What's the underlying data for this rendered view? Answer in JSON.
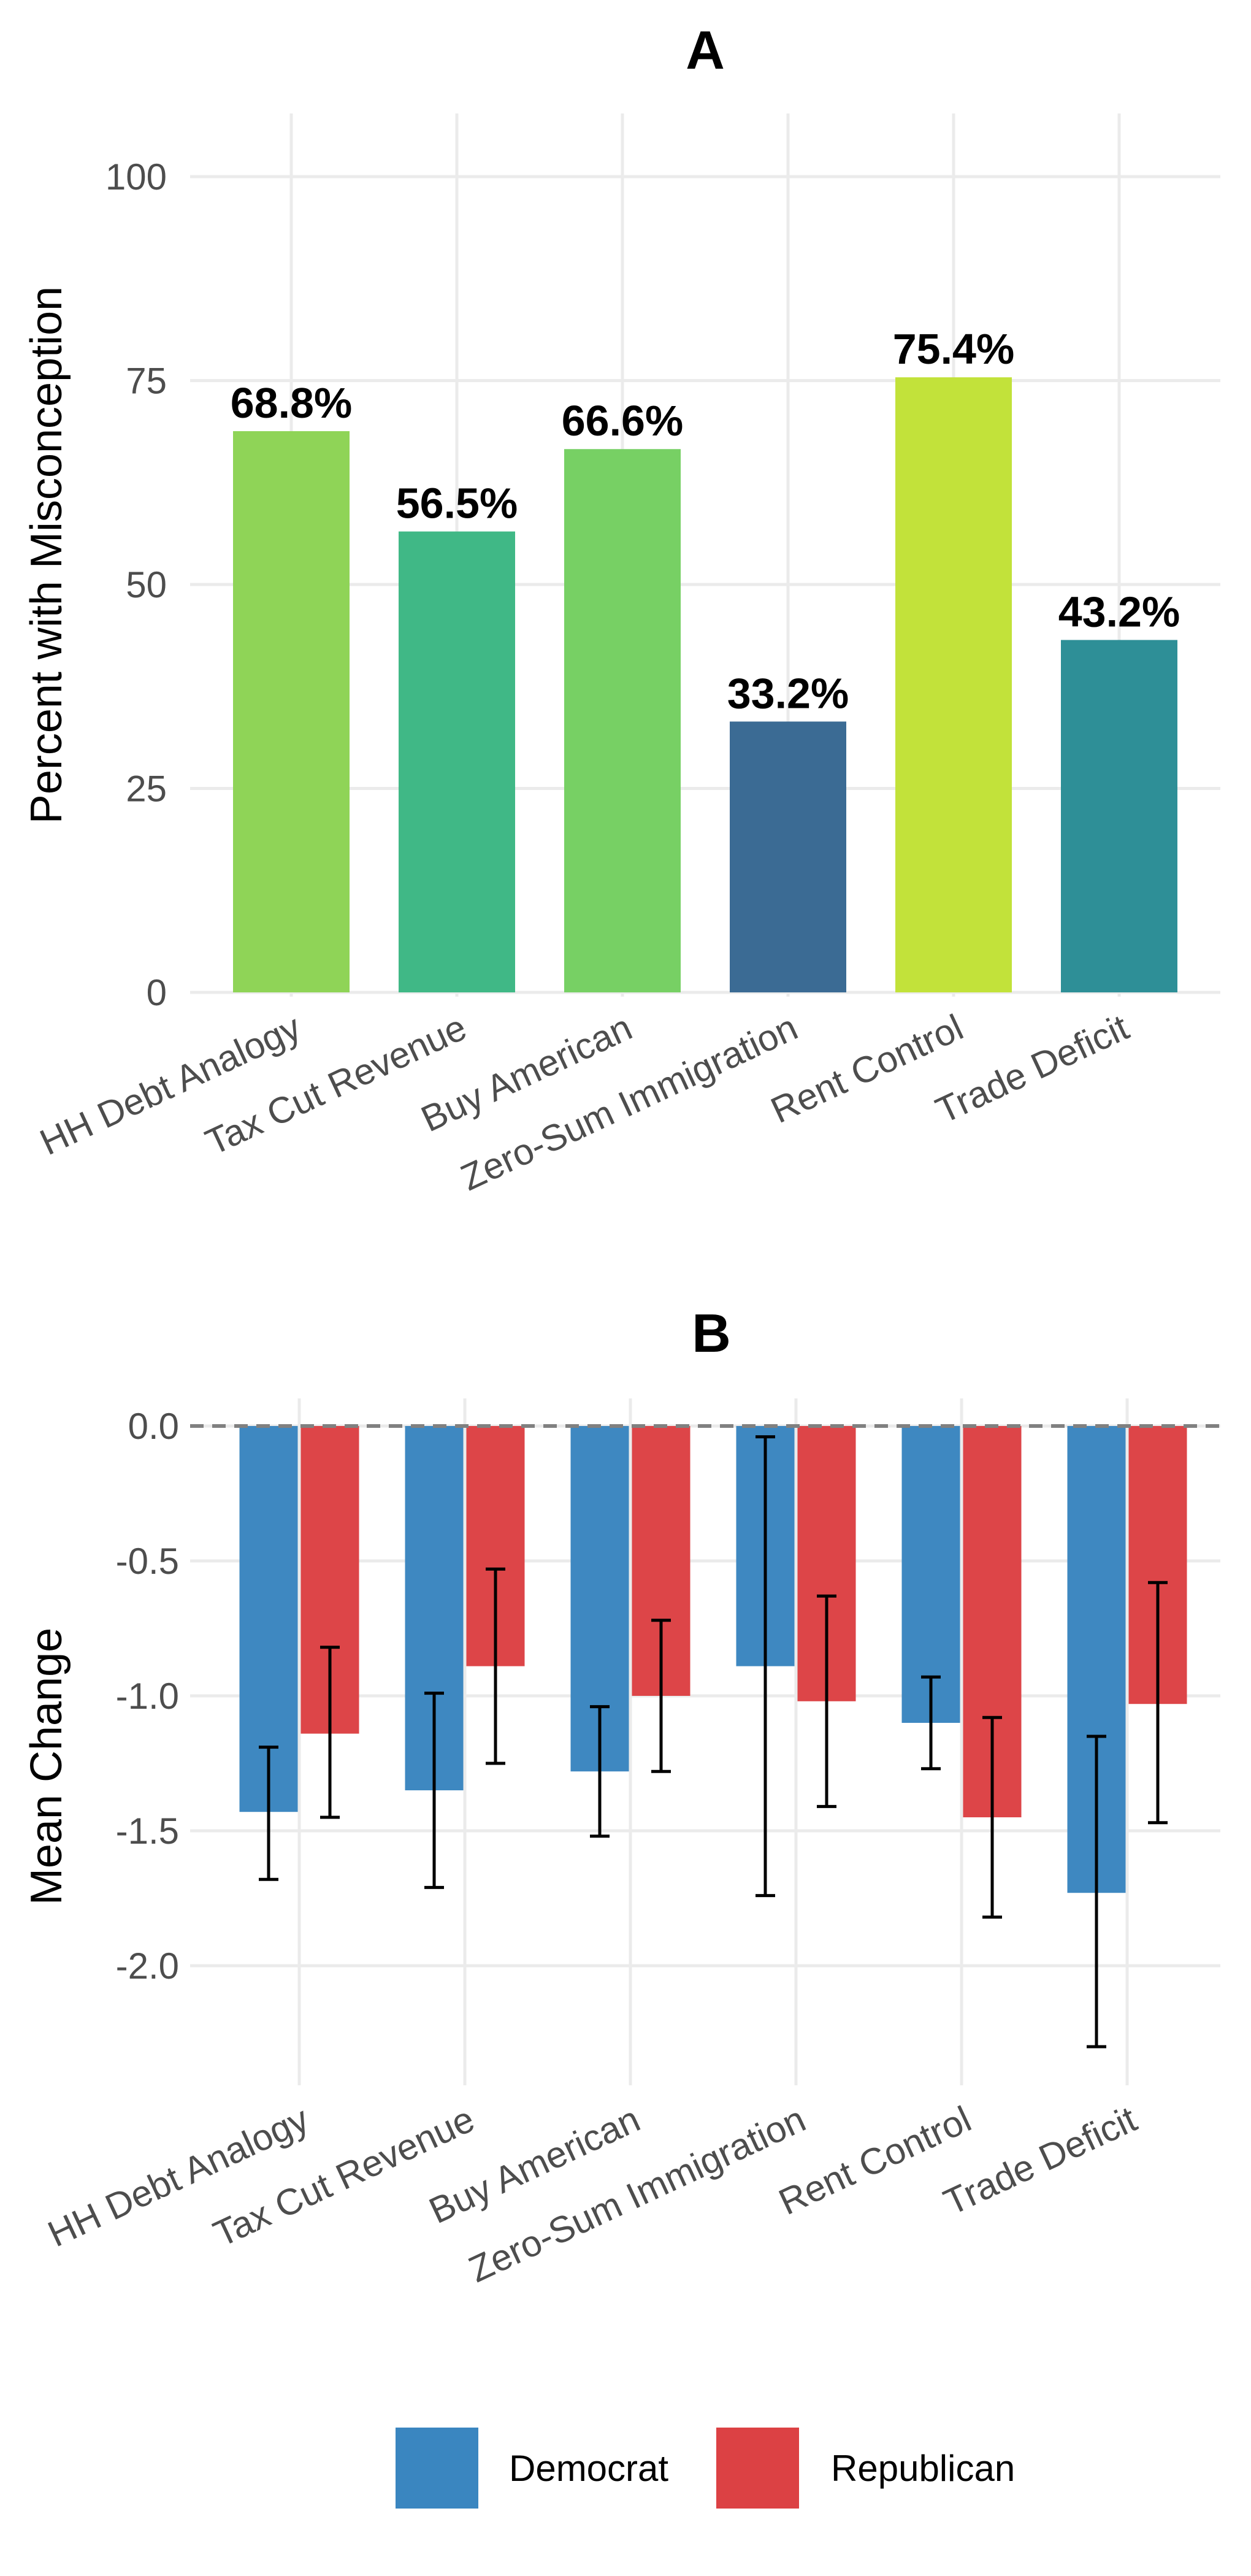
{
  "chart_data": [
    {
      "type": "bar",
      "title": "A",
      "xlabel": "",
      "ylabel": "Percent with Misconception",
      "categories": [
        "HH Debt Analogy",
        "Tax Cut Revenue",
        "Buy American",
        "Zero-Sum Immigration",
        "Rent Control",
        "Trade Deficit"
      ],
      "values": [
        68.8,
        56.5,
        66.6,
        33.2,
        75.4,
        43.2
      ],
      "data_labels": [
        "68.8%",
        "56.5%",
        "66.6%",
        "33.2%",
        "75.4%",
        "43.2%"
      ],
      "colors": [
        "#8fd457",
        "#40b886",
        "#77d064",
        "#3b6b94",
        "#c2e23a",
        "#2e8f97"
      ],
      "ylim": [
        0,
        100
      ],
      "yticks": [
        0,
        25,
        50,
        75,
        100
      ],
      "ytick_labels": [
        "0",
        "25",
        "50",
        "75",
        "100"
      ],
      "grid": true
    },
    {
      "type": "bar",
      "title": "B",
      "xlabel": "",
      "ylabel": "Mean Change",
      "categories": [
        "HH Debt Analogy",
        "Tax Cut Revenue",
        "Buy American",
        "Zero-Sum Immigration",
        "Rent Control",
        "Trade Deficit"
      ],
      "series": [
        {
          "name": "Democrat",
          "color": "#3a86c0",
          "values": [
            -1.43,
            -1.35,
            -1.28,
            -0.89,
            -1.1,
            -1.73
          ],
          "error_low": [
            -1.68,
            -1.71,
            -1.52,
            -1.74,
            -1.27,
            -2.3
          ],
          "error_high": [
            -1.19,
            -0.99,
            -1.04,
            -0.04,
            -0.93,
            -1.15
          ]
        },
        {
          "name": "Republican",
          "color": "#dc4144",
          "values": [
            -1.14,
            -0.89,
            -1.0,
            -1.02,
            -1.45,
            -1.03
          ],
          "error_low": [
            -1.45,
            -1.25,
            -1.28,
            -1.41,
            -1.82,
            -1.47
          ],
          "error_high": [
            -0.82,
            -0.53,
            -0.72,
            -0.63,
            -1.08,
            -0.58
          ]
        }
      ],
      "reference_line": 0,
      "ylim": [
        -2.4,
        0.1
      ],
      "yticks": [
        0,
        -0.5,
        -1,
        -1.5,
        -2
      ],
      "ytick_labels": [
        "0.0",
        "-0.5",
        "-1.0",
        "-1.5",
        "-2.0"
      ],
      "grid": true,
      "legend": {
        "position": "bottom",
        "entries": [
          "Democrat",
          "Republican"
        ]
      }
    }
  ]
}
